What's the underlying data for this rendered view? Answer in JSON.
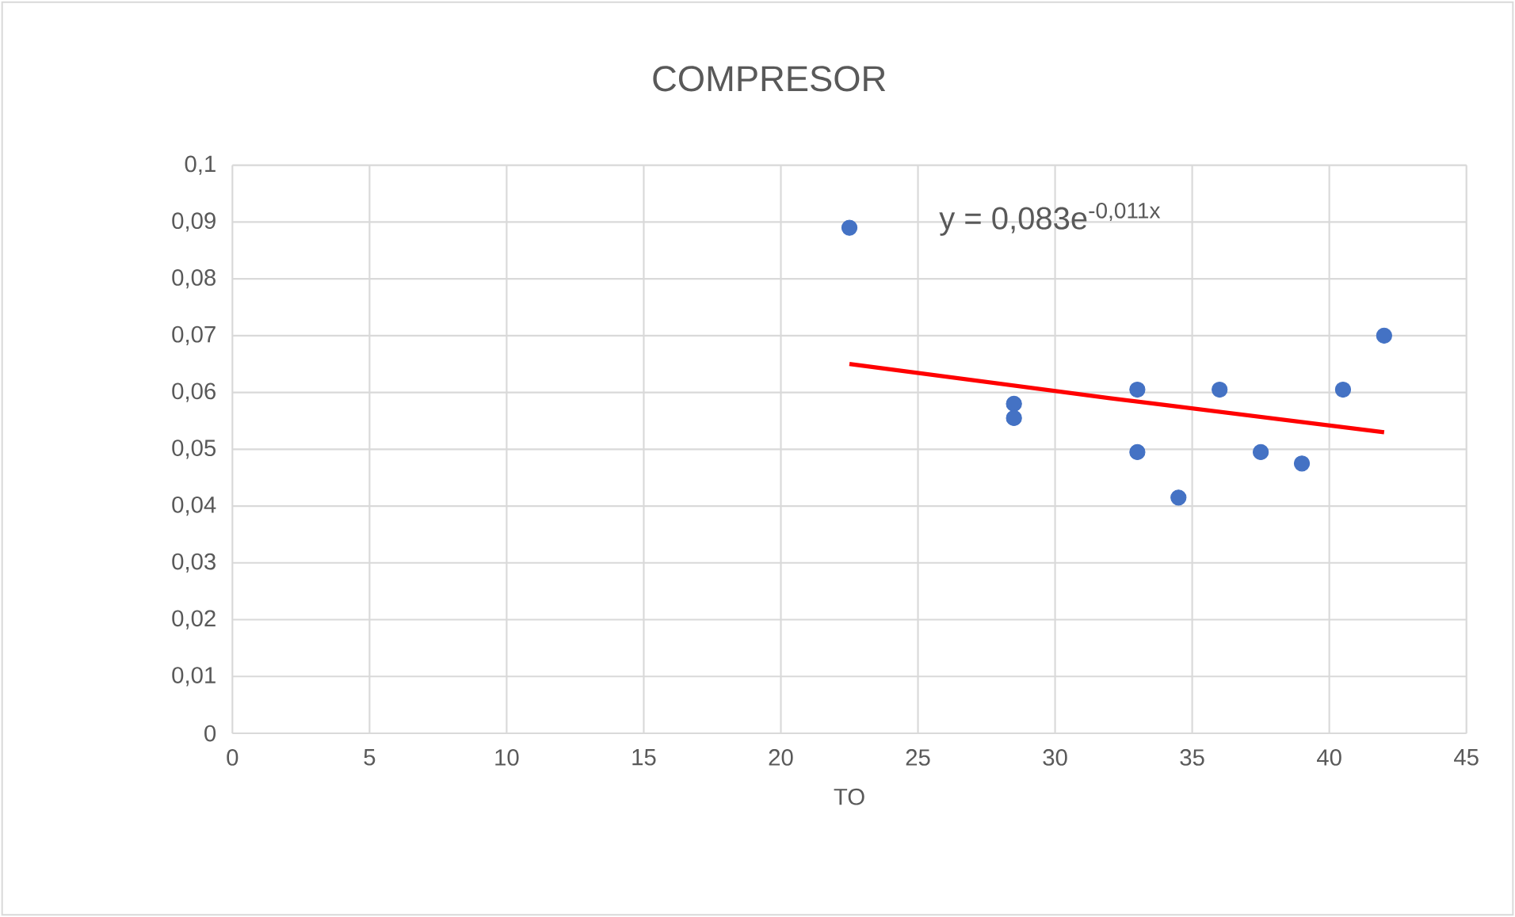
{
  "chart_data": {
    "type": "scatter",
    "title": "COMPRESOR",
    "xlabel": "TO",
    "annotations": [
      "y = 0,083e$^{-0,011x}$"
    ],
    "series": [
      {
        "color": "#4472c4",
        "marker": "circle",
        "x": [
          22.5,
          28.5,
          28.5,
          33,
          33,
          34.5,
          36,
          37.5,
          39,
          40.5,
          42
        ],
        "values": [
          0.089,
          0.058,
          0.0555,
          0.0605,
          0.0495,
          0.0415,
          0.0605,
          0.0495,
          0.0475,
          0.0605,
          0.07
        ]
      },
      {
        "type": "line",
        "marker": "none",
        "color": "#ff0000",
        "x": [
          22.5,
          32,
          42
        ],
        "values": [
          0.065,
          0.059,
          0.053
        ]
      }
    ],
    "xlim": [
      0,
      45
    ],
    "ylim": [
      0,
      0.1
    ],
    "xticks": [
      0,
      5,
      10,
      15,
      20,
      25,
      30,
      35,
      40,
      45
    ],
    "yticks": [
      {
        "value": 0,
        "label": "0"
      },
      {
        "value": 0.01,
        "label": "0,01"
      },
      {
        "value": 0.02,
        "label": "0,02"
      },
      {
        "value": 0.03,
        "label": "0,03"
      },
      {
        "value": 0.04,
        "label": "0,04"
      },
      {
        "value": 0.05,
        "label": "0,05"
      },
      {
        "value": 0.06,
        "label": "0,06"
      },
      {
        "value": 0.07,
        "label": "0,07"
      },
      {
        "value": 0.08,
        "label": "0,08"
      },
      {
        "value": 0.09,
        "label": "0,09"
      },
      {
        "value": 0.1,
        "label": "0,1"
      }
    ],
    "grid": true
  }
}
